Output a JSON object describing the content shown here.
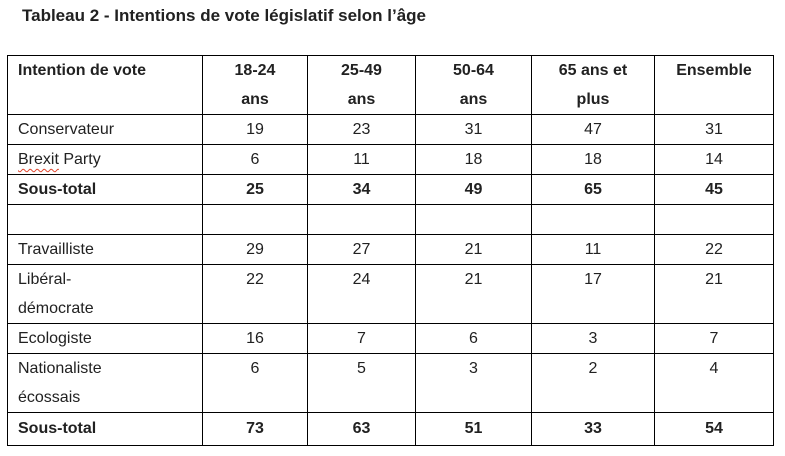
{
  "title": "Tableau 2 - Intentions de vote législatif selon l’âge",
  "colors": {
    "text": "#212121",
    "border": "#000000",
    "background": "#ffffff",
    "spellcheck_underline": "#e0442c"
  },
  "table": {
    "columns": [
      {
        "id": "intention-de-vote",
        "lines": [
          "Intention de vote"
        ]
      },
      {
        "id": "18-24-ans",
        "lines": [
          "18-24",
          "ans"
        ]
      },
      {
        "id": "25-49-ans",
        "lines": [
          "25-49",
          "ans"
        ]
      },
      {
        "id": "50-64-ans",
        "lines": [
          "50-64",
          "ans"
        ]
      },
      {
        "id": "65-ans-et-plus",
        "lines": [
          "65 ans et",
          "plus"
        ]
      },
      {
        "id": "ensemble",
        "lines": [
          "Ensemble"
        ]
      }
    ],
    "rows": [
      {
        "label_lines": [
          "Conservateur"
        ],
        "values": [
          "19",
          "23",
          "31",
          "47",
          "31"
        ],
        "bold": false
      },
      {
        "label_lines": [
          "Brexit Party"
        ],
        "values": [
          "6",
          "11",
          "18",
          "18",
          "14"
        ],
        "bold": false,
        "spellcheck_word": "Brexit"
      },
      {
        "label_lines": [
          "Sous-total"
        ],
        "values": [
          "25",
          "34",
          "49",
          "65",
          "45"
        ],
        "bold": true
      },
      {
        "label_lines": [
          ""
        ],
        "values": [
          "",
          "",
          "",
          "",
          ""
        ],
        "bold": false,
        "empty": true
      },
      {
        "label_lines": [
          "Travailliste"
        ],
        "values": [
          "29",
          "27",
          "21",
          "11",
          "22"
        ],
        "bold": false
      },
      {
        "label_lines": [
          "Libéral-",
          "démocrate"
        ],
        "values": [
          "22",
          "24",
          "21",
          "17",
          "21"
        ],
        "bold": false
      },
      {
        "label_lines": [
          "Ecologiste"
        ],
        "values": [
          "16",
          "7",
          "6",
          "3",
          "7"
        ],
        "bold": false
      },
      {
        "label_lines": [
          "Nationaliste",
          "écossais"
        ],
        "values": [
          "6",
          "5",
          "3",
          "2",
          "4"
        ],
        "bold": false
      },
      {
        "label_lines": [
          "Sous-total"
        ],
        "values": [
          "73",
          "63",
          "51",
          "33",
          "54"
        ],
        "bold": true,
        "final": true
      }
    ]
  },
  "chart_data": {
    "type": "table",
    "title": "Tableau 2 - Intentions de vote législatif selon l’âge",
    "columns": [
      "Intention de vote",
      "18-24 ans",
      "25-49 ans",
      "50-64 ans",
      "65 ans et plus",
      "Ensemble"
    ],
    "rows": [
      [
        "Conservateur",
        19,
        23,
        31,
        47,
        31
      ],
      [
        "Brexit Party",
        6,
        11,
        18,
        18,
        14
      ],
      [
        "Sous-total",
        25,
        34,
        49,
        65,
        45
      ],
      [
        "Travailliste",
        29,
        27,
        21,
        11,
        22
      ],
      [
        "Libéral-démocrate",
        22,
        24,
        21,
        17,
        21
      ],
      [
        "Ecologiste",
        16,
        7,
        6,
        3,
        7
      ],
      [
        "Nationaliste écossais",
        6,
        5,
        3,
        2,
        4
      ],
      [
        "Sous-total",
        73,
        63,
        51,
        33,
        54
      ]
    ]
  }
}
